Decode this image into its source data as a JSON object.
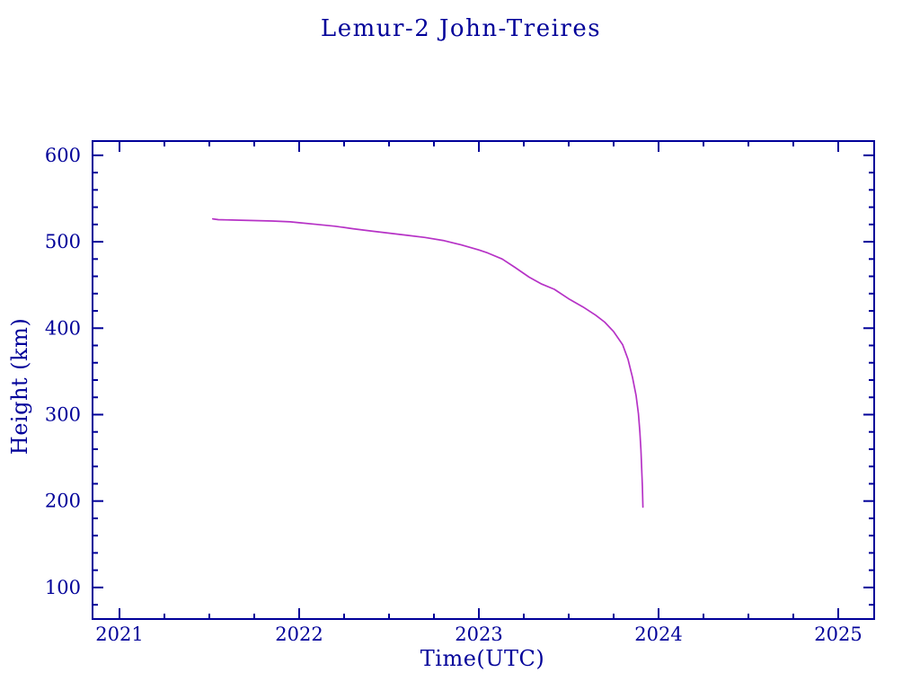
{
  "page": {
    "background": "#ffffff"
  },
  "chart_data": {
    "type": "line",
    "title": "Lemur-2 John-Treires",
    "xlabel": "Time(UTC)",
    "ylabel": "Height (km)",
    "xlim": [
      2020.85,
      2025.2
    ],
    "ylim": [
      63.5,
      616.5
    ],
    "grid": false,
    "legend": "none",
    "x_ticks": {
      "major": [
        2021,
        2022,
        2023,
        2024,
        2025
      ],
      "labels": [
        "2021",
        "2022",
        "2023",
        "2024",
        "2025"
      ],
      "minor_step": 0.25
    },
    "y_ticks": {
      "major": [
        100,
        200,
        300,
        400,
        500,
        600
      ],
      "labels": [
        "100",
        "200",
        "300",
        "400",
        "500",
        "600"
      ],
      "minor_step": 20
    },
    "colors": {
      "axis": "#000099",
      "text": "#000099",
      "curve": "#b632c6",
      "background": "#ffffff"
    },
    "series": [
      {
        "name": "orbit-height",
        "x": [
          2021.519,
          2021.55,
          2021.65,
          2021.75,
          2021.85,
          2021.95,
          2022.0,
          2022.1,
          2022.2,
          2022.3,
          2022.4,
          2022.5,
          2022.6,
          2022.7,
          2022.8,
          2022.9,
          2023.0,
          2023.05,
          2023.13,
          2023.2,
          2023.28,
          2023.35,
          2023.42,
          2023.5,
          2023.58,
          2023.65,
          2023.7,
          2023.75,
          2023.8,
          2023.83,
          2023.855,
          2023.875,
          2023.888,
          2023.896,
          2023.902,
          2023.906,
          2023.91,
          2023.913
        ],
        "y": [
          526.5,
          525.5,
          525.0,
          524.5,
          524.0,
          523.0,
          522.0,
          520.0,
          518.0,
          515.0,
          512.5,
          510.0,
          507.5,
          505.0,
          501.5,
          496.5,
          490.5,
          487.0,
          480.0,
          470.5,
          459.0,
          451.0,
          445.0,
          434.0,
          424.5,
          415.0,
          407.0,
          396.0,
          381.0,
          364.0,
          343.0,
          322.0,
          301.0,
          280.0,
          259.0,
          238.0,
          217.0,
          193.0
        ]
      }
    ]
  }
}
